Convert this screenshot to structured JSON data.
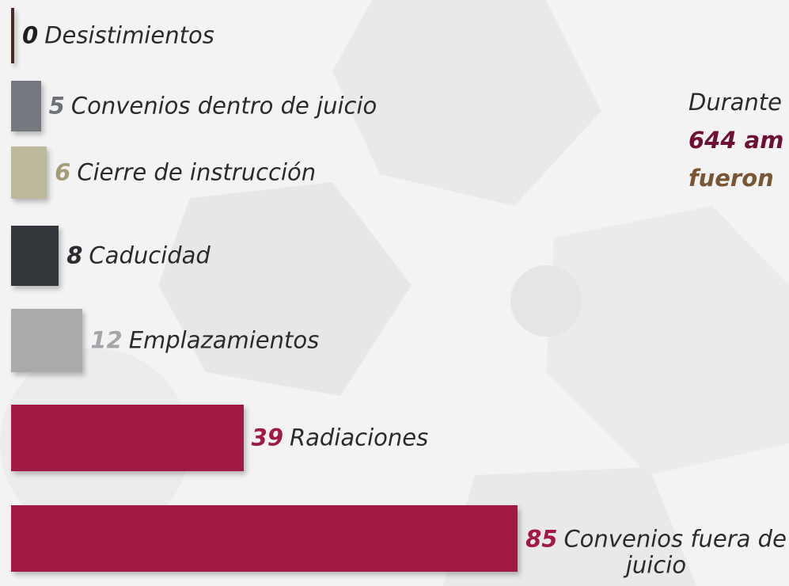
{
  "chart_data": {
    "type": "bar",
    "orientation": "horizontal",
    "categories": [
      "Desistimientos",
      "Convenios dentro de juicio",
      "Cierre de instrucción",
      "Caducidad",
      "Emplazamientos",
      "Radiaciones",
      "Convenios fuera de juicio"
    ],
    "values": [
      0,
      5,
      6,
      8,
      12,
      39,
      85
    ],
    "colors": [
      "#4a2a22",
      "#747980",
      "#bdb99c",
      "#33373b",
      "#a8aaac",
      "#a21a43",
      "#a21a43"
    ],
    "label_colors": [
      "#1f1f1f",
      "#6e7278",
      "#a39c78",
      "#2a2d31",
      "#a3a5a8",
      "#a21a43",
      "#a21a43"
    ],
    "note": [
      {
        "text": "Durante",
        "color": "#2b2b2b",
        "bold": false
      },
      {
        "text": "644 am",
        "color": "#6e1036",
        "bold": true
      },
      {
        "text": "fueron",
        "color": "#7a5533",
        "bold": true
      }
    ]
  }
}
